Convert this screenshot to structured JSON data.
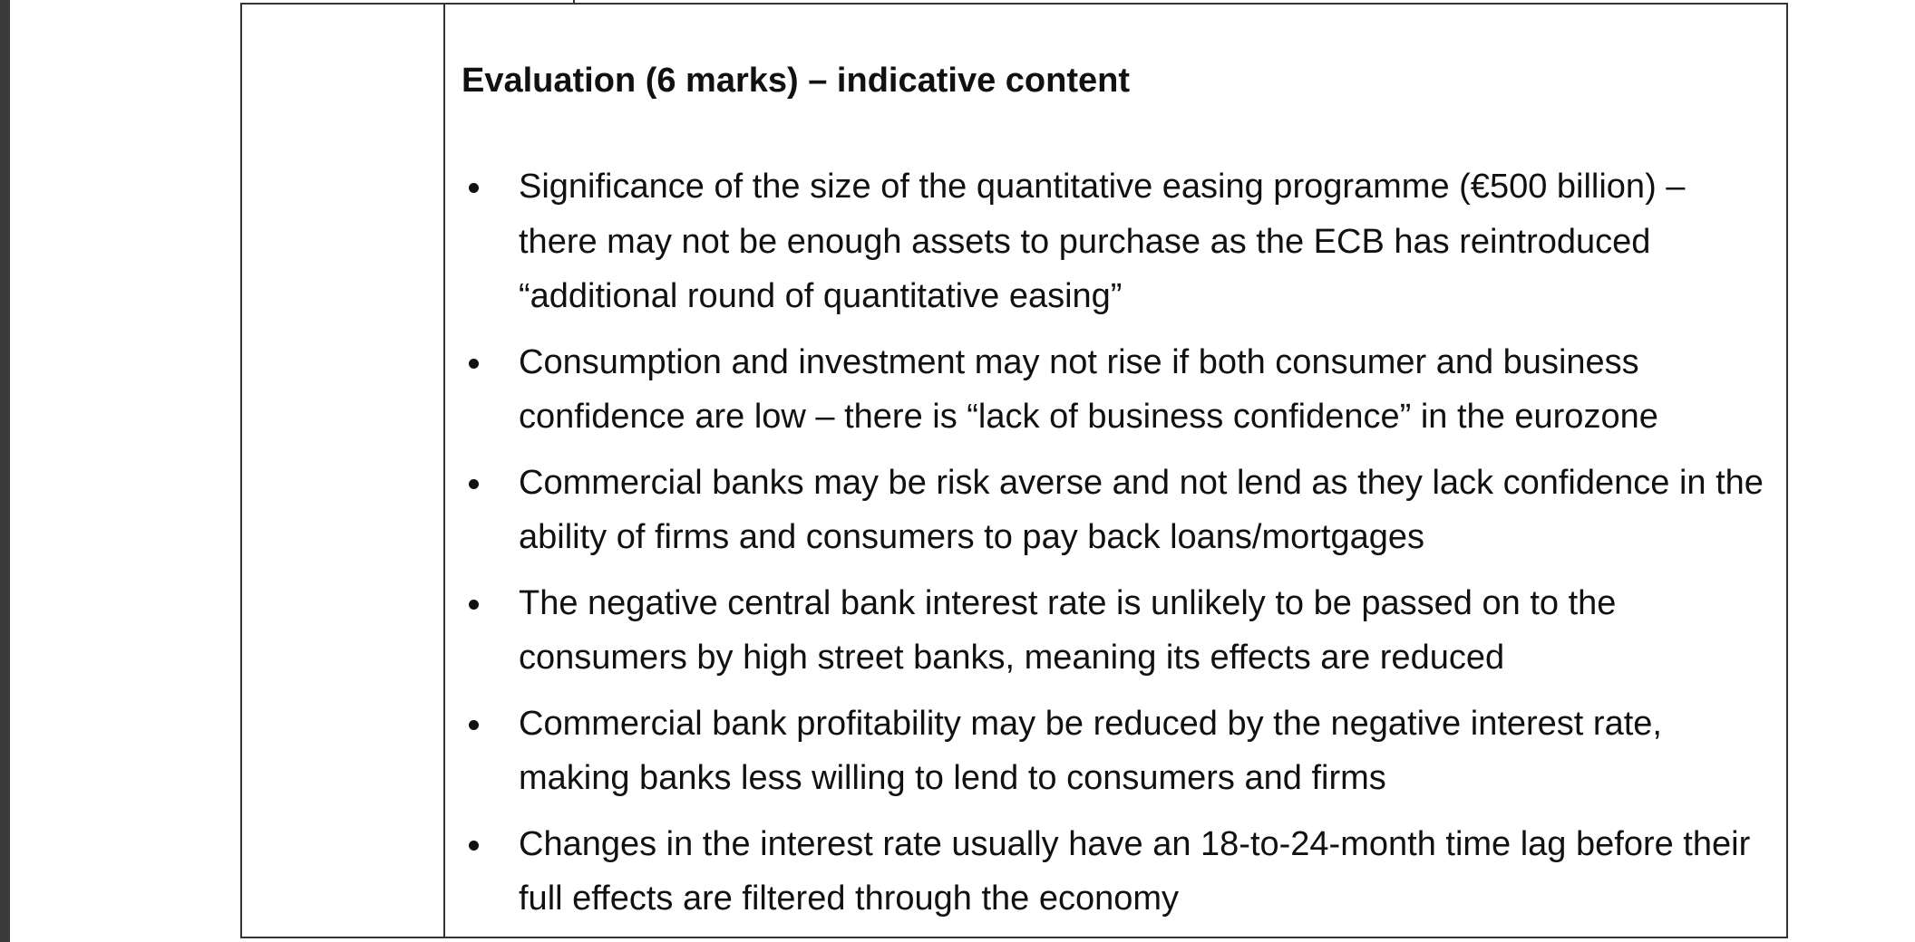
{
  "heading": "Evaluation (6 marks) – indicative content",
  "items": [
    "Significance of the size of the quantitative easing programme (€500 billion) – there may not be enough assets to purchase as the ECB has reintroduced “additional round of quantitative easing”",
    "Consumption and investment may not rise if both consumer and business confidence are low – there is “lack of business confidence” in the eurozone",
    "Commercial banks may be risk averse and not lend as they lack confidence in the ability of firms and consumers to pay back loans/mortgages",
    "The negative central bank interest rate is unlikely to be passed on to the consumers by high street banks, meaning its effects are reduced",
    "Commercial bank profitability may be reduced by the negative interest rate, making banks less willing to lend to consumers and firms",
    "Changes in the interest rate usually have an 18-to-24-month time lag before their full effects are filtered through the economy"
  ]
}
